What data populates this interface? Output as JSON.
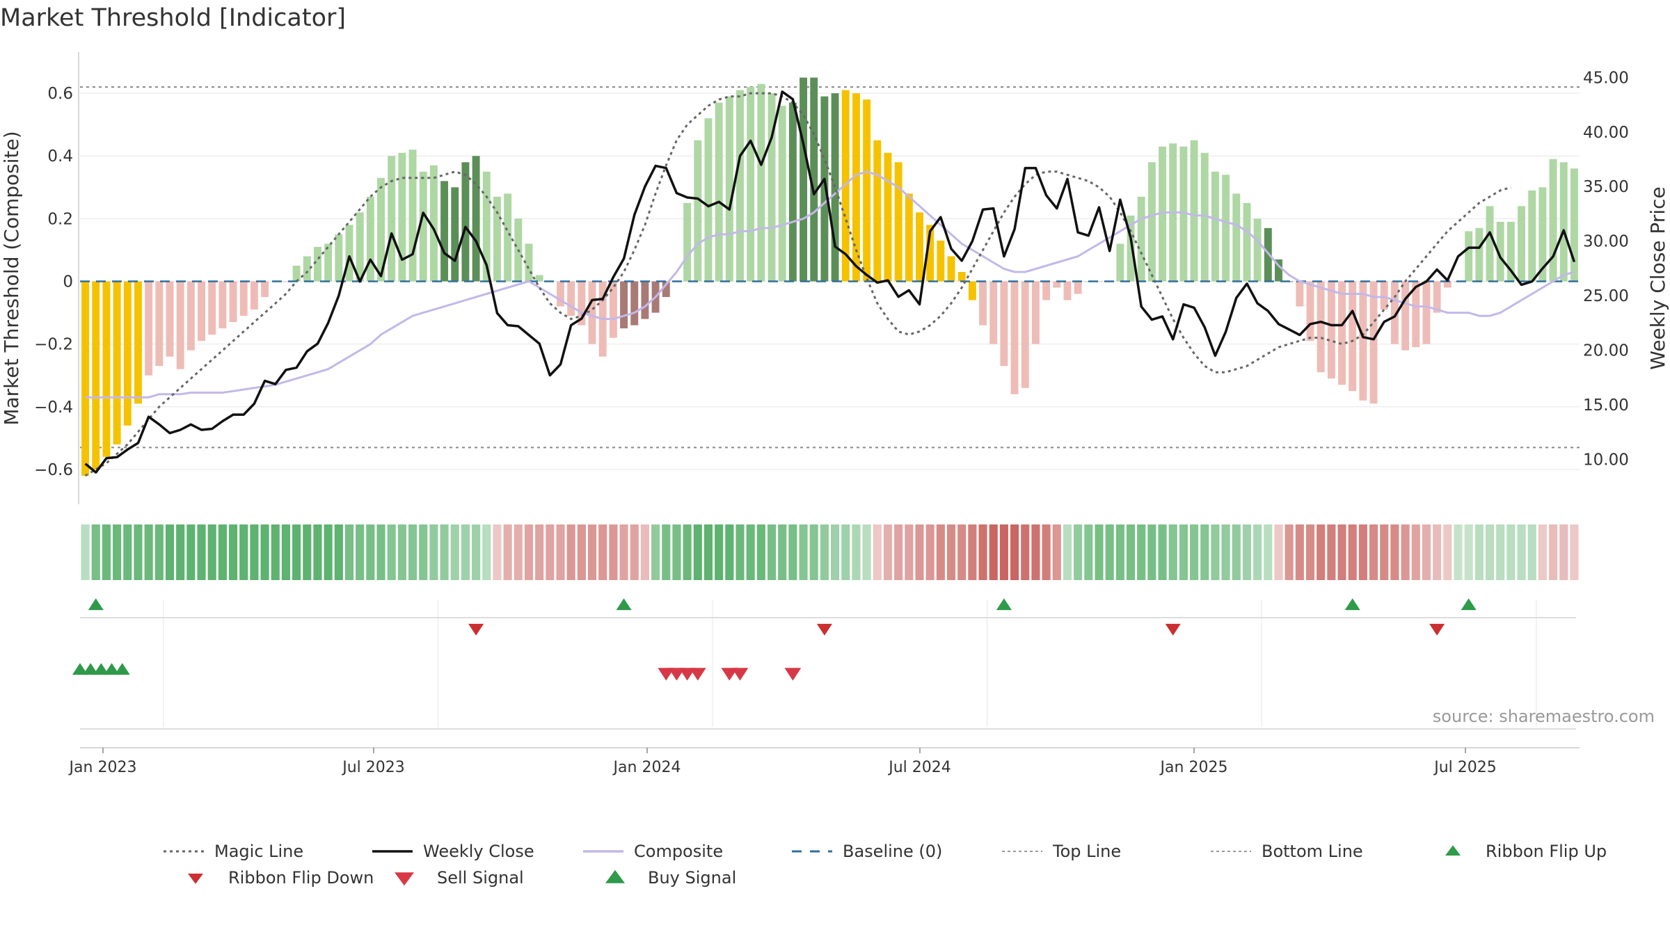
{
  "title": "Market Threshold [Indicator]",
  "source": "source: sharemaestro.com",
  "colors": {
    "gold": "#f5c200",
    "dark_green": "#5c8f58",
    "light_green": "#aed7a4",
    "dark_red": "#a87a76",
    "light_red": "#eebcb6",
    "composite": "#c3b8e8",
    "close": "#111111",
    "magic": "#666666",
    "baseline": "#2f6f9e",
    "buy": "#2e9a4a",
    "sell": "#d23a3a"
  },
  "legend": [
    {
      "label": "Magic Line",
      "style": "dotted"
    },
    {
      "label": "Weekly Close",
      "style": "solid-black"
    },
    {
      "label": "Composite",
      "style": "solid-lavender"
    },
    {
      "label": "Baseline (0)",
      "style": "dashed-blue"
    },
    {
      "label": "Top Line",
      "style": "dotted-gray"
    },
    {
      "label": "Bottom Line",
      "style": "dotted-gray"
    },
    {
      "label": "Ribbon Flip Up",
      "style": "triangle-up-green"
    },
    {
      "label": "Ribbon Flip Down",
      "style": "triangle-down-red"
    },
    {
      "label": "Sell Signal",
      "style": "triangle-down-light-red"
    },
    {
      "label": "Buy Signal",
      "style": "triangle-up-light-green"
    }
  ],
  "chart_data": {
    "type": "bar",
    "title": "Market Threshold [Indicator]",
    "start_date": "2022-12-26",
    "weeks": 142,
    "ylabel": "Market Threshold (Composite)",
    "y2label": "Weekly Close Price",
    "ylim": [
      -0.7,
      0.72
    ],
    "y2lim": [
      6.2,
      47
    ],
    "yticks": [
      "0.6",
      "0.4",
      "0.2",
      "0",
      "−0.2",
      "−0.4",
      "−0.6"
    ],
    "y2ticks": [
      "45.00",
      "40.00",
      "35.00",
      "30.00",
      "25.00",
      "20.00",
      "15.00",
      "10.00"
    ],
    "xticks": [
      "Jan 2023",
      "Jul 2023",
      "Jan 2024",
      "Jul 2024",
      "Jan 2025",
      "Jul 2025"
    ],
    "top_line": 0.62,
    "bottom_line": -0.53,
    "baseline": 0,
    "composite_bars": [
      -0.62,
      -0.6,
      -0.56,
      -0.52,
      -0.46,
      -0.39,
      -0.3,
      -0.27,
      -0.24,
      -0.28,
      -0.22,
      -0.19,
      -0.17,
      -0.15,
      -0.13,
      -0.11,
      -0.09,
      -0.05,
      0,
      0,
      0.05,
      0.08,
      0.11,
      0.12,
      0.15,
      0.18,
      0.22,
      0.27,
      0.33,
      0.4,
      0.41,
      0.42,
      0.35,
      0.37,
      0.32,
      0.3,
      0.38,
      0.4,
      0.35,
      0.27,
      0.28,
      0.2,
      0.12,
      0.02,
      0,
      -0.08,
      -0.11,
      -0.14,
      -0.2,
      -0.24,
      -0.18,
      -0.15,
      -0.14,
      -0.12,
      -0.1,
      -0.05,
      0,
      0.25,
      0.45,
      0.52,
      0.57,
      0.59,
      0.61,
      0.62,
      0.63,
      0.6,
      0.56,
      0.57,
      0.65,
      0.65,
      0.59,
      0.6,
      0.61,
      0.6,
      0.58,
      0.45,
      0.41,
      0.38,
      0.28,
      0.22,
      0.18,
      0.13,
      0.08,
      0.03,
      -0.06,
      -0.14,
      -0.2,
      -0.27,
      -0.36,
      -0.34,
      -0.2,
      -0.06,
      -0.02,
      -0.06,
      -0.04,
      0,
      0,
      0,
      0.12,
      0.21,
      0.27,
      0.38,
      0.43,
      0.44,
      0.43,
      0.45,
      0.41,
      0.35,
      0.34,
      0.28,
      0.25,
      0.2,
      0.17,
      0.07,
      0,
      -0.08,
      -0.19,
      -0.29,
      -0.31,
      -0.33,
      -0.35,
      -0.38,
      -0.39,
      -0.38,
      -0.27,
      -0.24,
      -0.22,
      -0.18,
      -0.15,
      -0.13,
      -0.09,
      -0.05,
      -0.04,
      -0.03,
      -0.1,
      -0.12,
      -0.14,
      -0.12,
      -0.1,
      -0.11,
      -0.12,
      -0.13
    ],
    "bar_tail": [
      -0.09,
      -0.2,
      -0.22,
      -0.21,
      -0.2,
      -0.1,
      -0.02,
      0,
      0.16,
      0.17,
      0.24,
      0.19,
      0.19,
      0.24,
      0.29,
      0.3,
      0.39,
      0.38,
      0.36
    ],
    "bar_color_codes": "GGGGGGrrrrrrrrrrrrrr0lllllllllllllDDDDllllllDDDlllrRRRRRRrrrrrr0lllDDDDDGGGGGGGGGGGGGlllllllllllrRRRRRrrrrrr0lllDDDDDDDDlllllllllllrRRRRRRRRrrrrrrrRRRRRRRRrrRRRRRRlllllllllllllll",
    "weekly_close": [
      9.6,
      8.8,
      10.1,
      10.2,
      10.9,
      11.5,
      13.9,
      13.2,
      12.4,
      12.7,
      13.2,
      12.7,
      12.8,
      13.5,
      14.1,
      14.1,
      15.1,
      17.2,
      16.9,
      18.2,
      18.4,
      19.9,
      20.6,
      22.5,
      25.0,
      28.6,
      26.3,
      28.3,
      26.8,
      30.7,
      28.3,
      28.8,
      32.6,
      31.1,
      28.9,
      28.2,
      31.3,
      30.0,
      27.8,
      23.4,
      22.3,
      22.2,
      21.4,
      20.6,
      17.7,
      18.7,
      22.3,
      22.9,
      24.6,
      24.7,
      26.7,
      28.4,
      32.4,
      35.0,
      36.9,
      36.7,
      34.4,
      34.0,
      33.9,
      33.2,
      33.6,
      32.9,
      37.8,
      39.2,
      37.0,
      39.5,
      43.7,
      43.0,
      38.9,
      34.3,
      35.7,
      29.5,
      28.8,
      27.7,
      26.9,
      26.2,
      26.4,
      24.9,
      25.5,
      24.2,
      30.9,
      32.2,
      29.3,
      28.2,
      30.0,
      32.9,
      33.0,
      28.6,
      31.1,
      36.7,
      36.7,
      34.2,
      33.0,
      35.7,
      30.8,
      30.5,
      33.1,
      29.1,
      33.8,
      30.3,
      24.0,
      22.8,
      23.1,
      21.0,
      24.2,
      23.9,
      22.1,
      19.5,
      21.7,
      24.8,
      26.1,
      24.3,
      23.6,
      22.4,
      21.9,
      21.4,
      22.4,
      22.6,
      22.3,
      22.3,
      23.6,
      21.2,
      21.0,
      22.6,
      23.1,
      24.7,
      25.8,
      26.3,
      27.4,
      26.4,
      28.6,
      29.4,
      29.4,
      30.8,
      28.5,
      27.3,
      26.0,
      26.3,
      27.5,
      28.6,
      31.0,
      28.1
    ],
    "magic_line": [
      -0.62,
      -0.6,
      -0.58,
      -0.55,
      -0.52,
      -0.48,
      -0.44,
      -0.4,
      -0.37,
      -0.34,
      -0.31,
      -0.28,
      -0.25,
      -0.22,
      -0.19,
      -0.16,
      -0.13,
      -0.1,
      -0.07,
      -0.04,
      0,
      0.03,
      0.07,
      0.11,
      0.15,
      0.19,
      0.23,
      0.27,
      0.3,
      0.32,
      0.33,
      0.33,
      0.33,
      0.33,
      0.34,
      0.35,
      0.34,
      0.31,
      0.27,
      0.22,
      0.16,
      0.1,
      0.04,
      -0.02,
      -0.07,
      -0.1,
      -0.12,
      -0.11,
      -0.09,
      -0.06,
      -0.02,
      0.03,
      0.1,
      0.18,
      0.28,
      0.37,
      0.45,
      0.5,
      0.53,
      0.56,
      0.58,
      0.59,
      0.59,
      0.6,
      0.6,
      0.6,
      0.59,
      0.57,
      0.53,
      0.47,
      0.39,
      0.3,
      0.2,
      0.1,
      0.01,
      -0.07,
      -0.12,
      -0.16,
      -0.17,
      -0.16,
      -0.14,
      -0.11,
      -0.07,
      -0.02,
      0.04,
      0.1,
      0.16,
      0.22,
      0.27,
      0.31,
      0.34,
      0.35,
      0.35,
      0.34,
      0.33,
      0.32,
      0.3,
      0.27,
      0.22,
      0.16,
      0.09,
      0.02,
      -0.05,
      -0.12,
      -0.18,
      -0.23,
      -0.27,
      -0.29,
      -0.29,
      -0.28,
      -0.27,
      -0.25,
      -0.23,
      -0.21,
      -0.2,
      -0.19,
      -0.18,
      -0.18,
      -0.19,
      -0.2,
      -0.19,
      -0.17,
      -0.13,
      -0.09,
      -0.05,
      0,
      0.04,
      0.08,
      0.12,
      0.16,
      0.19,
      0.22,
      0.25,
      0.27,
      0.29,
      0.3
    ],
    "composite_line": [
      -0.37,
      -0.37,
      -0.37,
      -0.37,
      -0.37,
      -0.37,
      -0.37,
      -0.36,
      -0.36,
      -0.36,
      -0.355,
      -0.355,
      -0.355,
      -0.355,
      -0.35,
      -0.345,
      -0.34,
      -0.335,
      -0.33,
      -0.32,
      -0.31,
      -0.3,
      -0.29,
      -0.28,
      -0.26,
      -0.24,
      -0.22,
      -0.2,
      -0.17,
      -0.15,
      -0.13,
      -0.11,
      -0.1,
      -0.09,
      -0.08,
      -0.07,
      -0.06,
      -0.05,
      -0.04,
      -0.03,
      -0.02,
      -0.01,
      0,
      -0.02,
      -0.04,
      -0.06,
      -0.08,
      -0.1,
      -0.11,
      -0.12,
      -0.12,
      -0.11,
      -0.1,
      -0.08,
      -0.05,
      -0.01,
      0.03,
      0.08,
      0.12,
      0.14,
      0.15,
      0.15,
      0.16,
      0.16,
      0.17,
      0.17,
      0.18,
      0.19,
      0.2,
      0.22,
      0.25,
      0.28,
      0.31,
      0.34,
      0.35,
      0.34,
      0.32,
      0.3,
      0.27,
      0.24,
      0.21,
      0.18,
      0.15,
      0.12,
      0.1,
      0.08,
      0.06,
      0.04,
      0.03,
      0.03,
      0.04,
      0.05,
      0.06,
      0.07,
      0.08,
      0.1,
      0.12,
      0.14,
      0.16,
      0.18,
      0.2,
      0.21,
      0.22,
      0.22,
      0.22,
      0.21,
      0.21,
      0.2,
      0.19,
      0.18,
      0.16,
      0.13,
      0.09,
      0.05,
      0.02,
      0,
      -0.01,
      -0.02,
      -0.03,
      -0.04,
      -0.04,
      -0.04,
      -0.05,
      -0.05,
      -0.06,
      -0.07,
      -0.08,
      -0.08,
      -0.09,
      -0.1,
      -0.1,
      -0.1,
      -0.11,
      -0.11,
      -0.1,
      -0.08,
      -0.06,
      -0.04,
      -0.02,
      0,
      0.02,
      0.03
    ],
    "ribbon": [
      0.3,
      0.8,
      0.9,
      0.9,
      0.9,
      0.9,
      0.9,
      0.9,
      1,
      1,
      1,
      1,
      1,
      1,
      1,
      1,
      1,
      1,
      1,
      1,
      1,
      1,
      1,
      1,
      1,
      0.8,
      0.8,
      0.8,
      0.8,
      0.7,
      0.7,
      0.7,
      0.7,
      0.6,
      0.6,
      0.5,
      0.5,
      0.5,
      0.3,
      -0.2,
      -0.4,
      -0.4,
      -0.5,
      -0.5,
      -0.5,
      -0.5,
      -0.6,
      -0.6,
      -0.6,
      -0.6,
      -0.6,
      -0.5,
      -0.5,
      -0.3,
      0.6,
      0.8,
      0.8,
      0.9,
      1,
      1,
      1,
      1,
      0.9,
      0.9,
      0.9,
      0.8,
      0.8,
      0.8,
      0.7,
      0.7,
      0.6,
      0.5,
      0.5,
      0.4,
      0.3,
      -0.2,
      -0.4,
      -0.5,
      -0.5,
      -0.6,
      -0.6,
      -0.7,
      -0.7,
      -0.7,
      -0.8,
      -0.9,
      -1,
      -1,
      -1,
      -0.9,
      -0.9,
      -0.8,
      -0.6,
      0.3,
      0.6,
      0.7,
      0.8,
      0.8,
      0.8,
      0.8,
      0.8,
      0.8,
      0.8,
      0.7,
      0.7,
      0.7,
      0.7,
      0.6,
      0.6,
      0.6,
      0.5,
      0.4,
      0.3,
      -0.2,
      -0.6,
      -0.7,
      -0.7,
      -0.8,
      -0.8,
      -0.8,
      -0.8,
      -0.8,
      -0.7,
      -0.7,
      -0.7,
      -0.6,
      -0.5,
      -0.4,
      -0.3,
      -0.2,
      0.2,
      0.2,
      0.3,
      0.3,
      0.3,
      0.3,
      0.3,
      0.3,
      -0.2,
      -0.3,
      -0.3,
      -0.2,
      0.5,
      0.6,
      0.6,
      0.6,
      0.6,
      0.6,
      0.6,
      0.6,
      0.6,
      0.6,
      0.6,
      0.6
    ],
    "flip_up_weeks": [
      1,
      51,
      87,
      120,
      131
    ],
    "flip_down_weeks": [
      37,
      70,
      103,
      128
    ],
    "buy_signal_weeks": [
      0,
      1,
      2,
      3,
      4
    ],
    "sell_signal_weeks": [
      55,
      56,
      57,
      58,
      61,
      62,
      67
    ]
  }
}
